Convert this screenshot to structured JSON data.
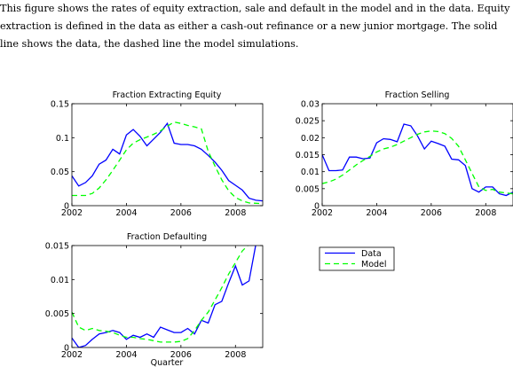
{
  "caption": [
    "This figure shows the rates of equity extraction, sale and default in the model and in the data. Equity",
    "extraction is defined in the data as either a cash-out refinance or a new junior mortgage. The solid",
    "line shows the data, the dashed line the model simulations."
  ],
  "legend": {
    "data_label": "Data",
    "model_label": "Model"
  },
  "colors": {
    "data": "#0000ff",
    "model": "#00ff00"
  },
  "chart_data": [
    {
      "type": "line",
      "title": "Fraction Extracting Equity",
      "xlabel": "",
      "ylabel": "",
      "xlim": [
        2002,
        2009
      ],
      "ylim": [
        0,
        0.15
      ],
      "xticks": [
        2002,
        2004,
        2006,
        2008
      ],
      "yticks": [
        0,
        0.05,
        0.1,
        0.15
      ],
      "ytick_labels": [
        "0",
        "0.05",
        "0.1",
        "0.15"
      ],
      "grid": false,
      "series": [
        {
          "name": "Data",
          "style": "solid",
          "points": [
            [
              2002.0,
              0.044
            ],
            [
              2002.25,
              0.029
            ],
            [
              2002.5,
              0.034
            ],
            [
              2002.75,
              0.044
            ],
            [
              2003.0,
              0.061
            ],
            [
              2003.25,
              0.067
            ],
            [
              2003.5,
              0.083
            ],
            [
              2003.75,
              0.076
            ],
            [
              2004.0,
              0.104
            ],
            [
              2004.25,
              0.112
            ],
            [
              2004.5,
              0.102
            ],
            [
              2004.75,
              0.088
            ],
            [
              2005.0,
              0.098
            ],
            [
              2005.25,
              0.108
            ],
            [
              2005.5,
              0.121
            ],
            [
              2005.75,
              0.092
            ],
            [
              2006.0,
              0.09
            ],
            [
              2006.25,
              0.09
            ],
            [
              2006.5,
              0.088
            ],
            [
              2006.75,
              0.083
            ],
            [
              2007.0,
              0.074
            ],
            [
              2007.25,
              0.064
            ],
            [
              2007.5,
              0.052
            ],
            [
              2007.75,
              0.037
            ],
            [
              2008.0,
              0.03
            ],
            [
              2008.25,
              0.023
            ],
            [
              2008.5,
              0.011
            ],
            [
              2008.75,
              0.008
            ],
            [
              2009.0,
              0.007
            ]
          ]
        },
        {
          "name": "Model",
          "style": "dashed",
          "points": [
            [
              2002.0,
              0.015
            ],
            [
              2002.5,
              0.015
            ],
            [
              2002.75,
              0.018
            ],
            [
              2003.0,
              0.026
            ],
            [
              2003.25,
              0.038
            ],
            [
              2003.5,
              0.052
            ],
            [
              2003.75,
              0.067
            ],
            [
              2004.0,
              0.082
            ],
            [
              2004.25,
              0.092
            ],
            [
              2004.5,
              0.097
            ],
            [
              2004.75,
              0.101
            ],
            [
              2005.0,
              0.105
            ],
            [
              2005.25,
              0.11
            ],
            [
              2005.5,
              0.117
            ],
            [
              2005.75,
              0.123
            ],
            [
              2006.0,
              0.121
            ],
            [
              2006.25,
              0.118
            ],
            [
              2006.5,
              0.116
            ],
            [
              2006.75,
              0.113
            ],
            [
              2007.0,
              0.08
            ],
            [
              2007.25,
              0.058
            ],
            [
              2007.5,
              0.038
            ],
            [
              2007.75,
              0.022
            ],
            [
              2008.0,
              0.012
            ],
            [
              2008.25,
              0.007
            ],
            [
              2008.5,
              0.004
            ],
            [
              2009.0,
              0.003
            ]
          ]
        }
      ]
    },
    {
      "type": "line",
      "title": "Fraction Selling",
      "xlabel": "",
      "ylabel": "",
      "xlim": [
        2002,
        2009
      ],
      "ylim": [
        0,
        0.03
      ],
      "xticks": [
        2002,
        2004,
        2006,
        2008
      ],
      "yticks": [
        0,
        0.005,
        0.01,
        0.015,
        0.02,
        0.025,
        0.03
      ],
      "ytick_labels": [
        "0",
        "0.005",
        "0.01",
        "0.015",
        "0.02",
        "0.025",
        "0.03"
      ],
      "grid": false,
      "series": [
        {
          "name": "Data",
          "style": "solid",
          "points": [
            [
              2002.0,
              0.015
            ],
            [
              2002.25,
              0.0103
            ],
            [
              2002.5,
              0.0103
            ],
            [
              2002.75,
              0.0105
            ],
            [
              2003.0,
              0.0143
            ],
            [
              2003.25,
              0.0143
            ],
            [
              2003.5,
              0.0138
            ],
            [
              2003.75,
              0.014
            ],
            [
              2004.0,
              0.0185
            ],
            [
              2004.25,
              0.0197
            ],
            [
              2004.5,
              0.0195
            ],
            [
              2004.75,
              0.0188
            ],
            [
              2005.0,
              0.024
            ],
            [
              2005.25,
              0.0235
            ],
            [
              2005.5,
              0.0205
            ],
            [
              2005.75,
              0.0167
            ],
            [
              2006.0,
              0.019
            ],
            [
              2006.25,
              0.0183
            ],
            [
              2006.5,
              0.0175
            ],
            [
              2006.75,
              0.0137
            ],
            [
              2007.0,
              0.0135
            ],
            [
              2007.25,
              0.0118
            ],
            [
              2007.5,
              0.005
            ],
            [
              2007.75,
              0.004
            ],
            [
              2008.0,
              0.0055
            ],
            [
              2008.25,
              0.0055
            ],
            [
              2008.5,
              0.0035
            ],
            [
              2008.75,
              0.003
            ],
            [
              2009.0,
              0.004
            ]
          ]
        },
        {
          "name": "Model",
          "style": "dashed",
          "points": [
            [
              2002.0,
              0.0065
            ],
            [
              2002.25,
              0.007
            ],
            [
              2002.5,
              0.0078
            ],
            [
              2002.75,
              0.009
            ],
            [
              2003.0,
              0.0105
            ],
            [
              2003.25,
              0.012
            ],
            [
              2003.5,
              0.0133
            ],
            [
              2003.75,
              0.0145
            ],
            [
              2004.0,
              0.0158
            ],
            [
              2004.25,
              0.0167
            ],
            [
              2004.5,
              0.0172
            ],
            [
              2004.75,
              0.018
            ],
            [
              2005.0,
              0.019
            ],
            [
              2005.25,
              0.02
            ],
            [
              2005.5,
              0.021
            ],
            [
              2005.75,
              0.0217
            ],
            [
              2006.0,
              0.022
            ],
            [
              2006.25,
              0.0218
            ],
            [
              2006.5,
              0.0212
            ],
            [
              2006.75,
              0.0198
            ],
            [
              2007.0,
              0.0175
            ],
            [
              2007.25,
              0.0135
            ],
            [
              2007.5,
              0.0095
            ],
            [
              2007.75,
              0.0055
            ],
            [
              2008.0,
              0.0045
            ],
            [
              2008.25,
              0.0048
            ],
            [
              2008.5,
              0.004
            ],
            [
              2009.0,
              0.0035
            ]
          ]
        }
      ]
    },
    {
      "type": "line",
      "title": "Fraction Defaulting",
      "xlabel": "Quarter",
      "ylabel": "",
      "xlim": [
        2002,
        2009
      ],
      "ylim": [
        0,
        0.015
      ],
      "xticks": [
        2002,
        2004,
        2006,
        2008
      ],
      "yticks": [
        0,
        0.005,
        0.01,
        0.015
      ],
      "ytick_labels": [
        "0",
        "0.005",
        "0.01",
        "0.015"
      ],
      "grid": false,
      "series": [
        {
          "name": "Data",
          "style": "solid",
          "points": [
            [
              2002.0,
              0.0014
            ],
            [
              2002.25,
              0.0
            ],
            [
              2002.5,
              0.0003
            ],
            [
              2002.75,
              0.0012
            ],
            [
              2003.0,
              0.002
            ],
            [
              2003.25,
              0.0022
            ],
            [
              2003.5,
              0.0025
            ],
            [
              2003.75,
              0.0022
            ],
            [
              2004.0,
              0.0012
            ],
            [
              2004.25,
              0.0018
            ],
            [
              2004.5,
              0.0015
            ],
            [
              2004.75,
              0.002
            ],
            [
              2005.0,
              0.0015
            ],
            [
              2005.25,
              0.003
            ],
            [
              2005.5,
              0.0026
            ],
            [
              2005.75,
              0.0022
            ],
            [
              2006.0,
              0.0022
            ],
            [
              2006.25,
              0.0028
            ],
            [
              2006.5,
              0.002
            ],
            [
              2006.75,
              0.004
            ],
            [
              2007.0,
              0.0036
            ],
            [
              2007.25,
              0.0063
            ],
            [
              2007.5,
              0.0068
            ],
            [
              2007.75,
              0.0095
            ],
            [
              2008.0,
              0.012
            ],
            [
              2008.25,
              0.0092
            ],
            [
              2008.5,
              0.0098
            ],
            [
              2008.75,
              0.0152
            ]
          ]
        },
        {
          "name": "Model",
          "style": "dashed",
          "points": [
            [
              2002.0,
              0.0052
            ],
            [
              2002.25,
              0.003
            ],
            [
              2002.5,
              0.0025
            ],
            [
              2002.75,
              0.0028
            ],
            [
              2003.0,
              0.0025
            ],
            [
              2003.25,
              0.0024
            ],
            [
              2003.5,
              0.0022
            ],
            [
              2003.75,
              0.0018
            ],
            [
              2004.0,
              0.0015
            ],
            [
              2004.25,
              0.0015
            ],
            [
              2004.5,
              0.0013
            ],
            [
              2004.75,
              0.0012
            ],
            [
              2005.0,
              0.001
            ],
            [
              2005.25,
              0.0008
            ],
            [
              2005.5,
              0.0008
            ],
            [
              2005.75,
              0.0008
            ],
            [
              2006.0,
              0.0009
            ],
            [
              2006.25,
              0.0013
            ],
            [
              2006.5,
              0.0025
            ],
            [
              2006.75,
              0.004
            ],
            [
              2007.0,
              0.0052
            ],
            [
              2007.25,
              0.007
            ],
            [
              2007.5,
              0.0088
            ],
            [
              2007.75,
              0.0108
            ],
            [
              2008.0,
              0.0125
            ],
            [
              2008.25,
              0.0142
            ],
            [
              2008.5,
              0.0152
            ],
            [
              2008.75,
              0.0155
            ]
          ]
        }
      ]
    }
  ]
}
